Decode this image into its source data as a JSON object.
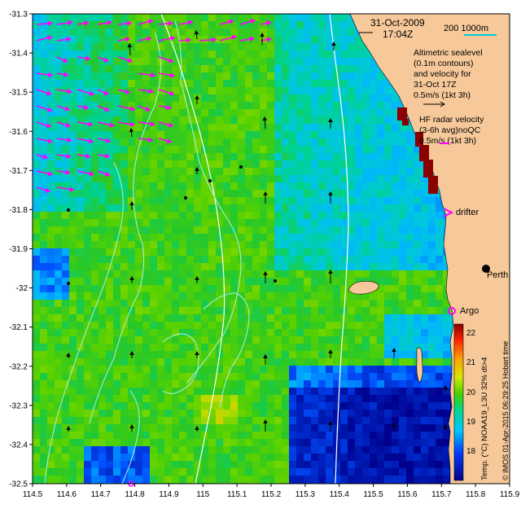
{
  "header": {
    "date": "31-Oct-2009",
    "time": "17:04Z",
    "scale_label": "200  1000m"
  },
  "legend": {
    "altimetric": [
      "Altimetric sealevel",
      "(0.1m contours)",
      "and velocity for",
      "31-Oct 17Z",
      "0.5m/s (1kt 3h)"
    ],
    "hf_radar": [
      "HF radar velocity",
      "(3-6h avg)noQC",
      "0.5m/s (1kt 3h)"
    ],
    "drifter": "drifter",
    "argo": "Argo",
    "perth": "Perth"
  },
  "colorbar": {
    "ticks": [
      "22",
      "21",
      "20",
      "19",
      "18"
    ],
    "title": "Temp. (°C) NOAA19_L3U 32% dt>4",
    "range": [
      17,
      22.5
    ]
  },
  "credit": "© IMOS 01-Apr-2015 06:29:25 Hobart time",
  "axes": {
    "x_ticks": [
      "114.5",
      "114.6",
      "114.7",
      "114.8",
      "114.9",
      "115",
      "115.1",
      "115.2",
      "115.3",
      "115.4",
      "115.5",
      "115.6",
      "115.7",
      "115.8",
      "115.9"
    ],
    "y_ticks": [
      "-31.3",
      "-31.4",
      "-31.5",
      "-31.6",
      "-31.7",
      "-31.8",
      "-31.9",
      "-32",
      "-32.1",
      "-32.2",
      "-32.3",
      "-32.4",
      "-32.5"
    ],
    "xlim": [
      114.5,
      115.9
    ],
    "ylim": [
      -32.5,
      -31.3
    ]
  },
  "colors": {
    "land": "#f7c99a",
    "hf_arrow": "#ff00ff",
    "contour": "#a8f0f0",
    "isobath": "#ffffff",
    "red_coast": "#8b0000"
  }
}
